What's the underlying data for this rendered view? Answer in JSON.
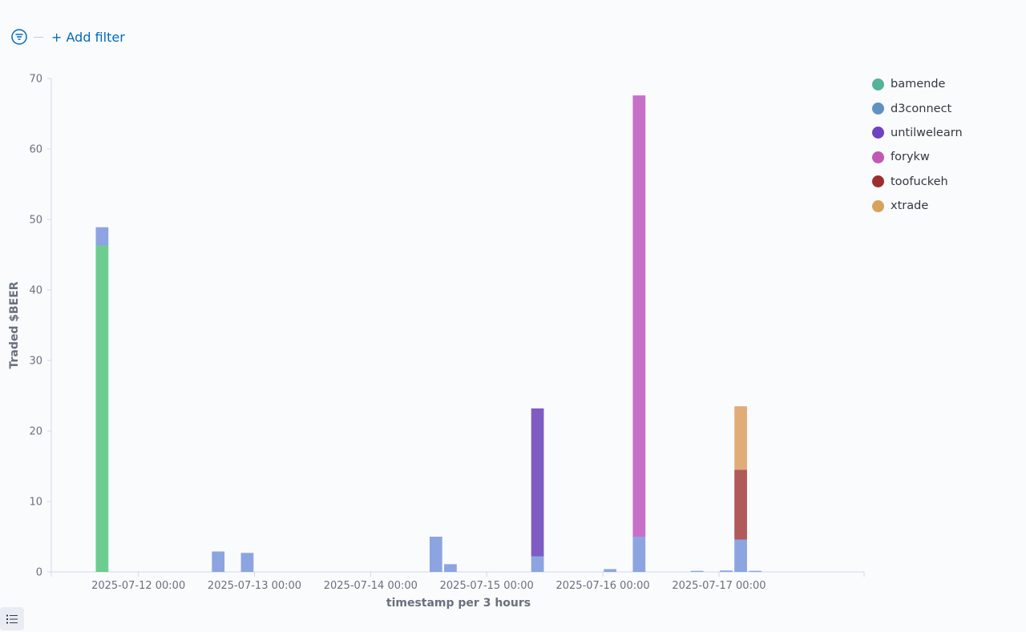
{
  "filter_bar": {
    "filter_icon": "filter-icon",
    "add_filter_label": "+ Add filter"
  },
  "legend_toggle_icon": "list-icon",
  "chart_data": {
    "type": "bar",
    "stacked": true,
    "xlabel": "timestamp per 3 hours",
    "ylabel": "Traded $BEER",
    "ylim": [
      0,
      70
    ],
    "yticks": [
      0,
      10,
      20,
      30,
      40,
      50,
      60,
      70
    ],
    "x_range": [
      "2025-07-11 06:00",
      "2025-07-18 06:00"
    ],
    "xticks": [
      "2025-07-12 00:00",
      "2025-07-13 00:00",
      "2025-07-14 00:00",
      "2025-07-15 00:00",
      "2025-07-16 00:00",
      "2025-07-17 00:00"
    ],
    "bucket": "3 hours",
    "legend_position": "right",
    "series": [
      {
        "name": "bamende",
        "color": "#54b399"
      },
      {
        "name": "d3connect",
        "color": "#6092c0"
      },
      {
        "name": "untilwelearn",
        "color": "#6f42c1"
      },
      {
        "name": "forykw",
        "color": "#c159b4"
      },
      {
        "name": "toofuckeh",
        "color": "#9b2f2f"
      },
      {
        "name": "xtrade",
        "color": "#d6a35c"
      }
    ],
    "colors": {
      "bamende": "#6dcc8f",
      "d3connect": "#8ca4e0",
      "untilwelearn": "#7f5cc4",
      "forykw": "#c86fc8",
      "toofuckeh": "#b05a5a",
      "xtrade": "#e0ad78"
    },
    "bars": [
      {
        "x": "2025-07-11 15:00",
        "segments": [
          {
            "series": "bamende",
            "value": 46.3
          },
          {
            "series": "d3connect",
            "value": 2.6
          }
        ]
      },
      {
        "x": "2025-07-12 15:00",
        "segments": [
          {
            "series": "d3connect",
            "value": 2.9
          }
        ]
      },
      {
        "x": "2025-07-12 21:00",
        "segments": [
          {
            "series": "d3connect",
            "value": 2.7
          }
        ]
      },
      {
        "x": "2025-07-14 12:00",
        "segments": [
          {
            "series": "d3connect",
            "value": 5.0
          }
        ]
      },
      {
        "x": "2025-07-14 15:00",
        "segments": [
          {
            "series": "d3connect",
            "value": 1.1
          }
        ]
      },
      {
        "x": "2025-07-15 09:00",
        "segments": [
          {
            "series": "d3connect",
            "value": 2.2
          },
          {
            "series": "untilwelearn",
            "value": 21.0
          }
        ]
      },
      {
        "x": "2025-07-16 00:00",
        "segments": [
          {
            "series": "d3connect",
            "value": 0.4
          }
        ]
      },
      {
        "x": "2025-07-16 06:00",
        "segments": [
          {
            "series": "d3connect",
            "value": 5.0
          },
          {
            "series": "forykw",
            "value": 62.6
          }
        ]
      },
      {
        "x": "2025-07-16 18:00",
        "segments": [
          {
            "series": "d3connect",
            "value": 0.15
          }
        ]
      },
      {
        "x": "2025-07-17 00:00",
        "segments": [
          {
            "series": "d3connect",
            "value": 0.2
          }
        ]
      },
      {
        "x": "2025-07-17 03:00",
        "segments": [
          {
            "series": "d3connect",
            "value": 4.6
          },
          {
            "series": "toofuckeh",
            "value": 9.9
          },
          {
            "series": "xtrade",
            "value": 9.0
          }
        ]
      },
      {
        "x": "2025-07-17 06:00",
        "segments": [
          {
            "series": "d3connect",
            "value": 0.15
          }
        ]
      }
    ]
  }
}
